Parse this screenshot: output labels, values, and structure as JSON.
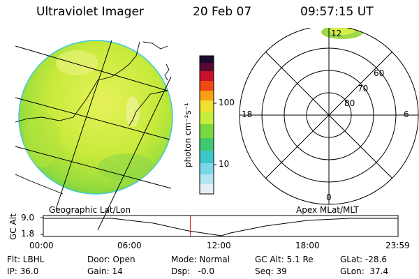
{
  "header": {
    "instrument": "Ultraviolet Imager",
    "date": "20 Feb 07",
    "time": "09:57:15 UT"
  },
  "colorbar": {
    "unit_label": "photon cm⁻²s⁻¹",
    "tick_100": "100",
    "tick_10": "10"
  },
  "polar": {
    "label_top": "12",
    "label_bottom": "0",
    "label_left": "18",
    "label_right": "6",
    "lat_60": "60",
    "lat_70": "70",
    "lat_80": "80"
  },
  "projection_labels": {
    "left": "Geographic Lat/Lon",
    "right": "Apex  MLat/MLT"
  },
  "timeline": {
    "axis_label": "GC Alt",
    "y_top": "9.0",
    "y_bottom": "1.8",
    "ticks": [
      "00:00",
      "06:00",
      "12:00",
      "18:00",
      "23:59"
    ],
    "current_hour": 9.95
  },
  "info": {
    "filter": "Flt: LBHL",
    "ip": "IP: 36.0",
    "door": "Door: Open",
    "gain": "Gain: 14",
    "mode": "Mode: Normal",
    "dsp": "Dsp:   -0.0",
    "gc_alt": "GC Alt: 5.1 Re",
    "seq": "Seq: 39",
    "glat": "GLat: -28.6",
    "glon": "GLon:  37.4"
  }
}
